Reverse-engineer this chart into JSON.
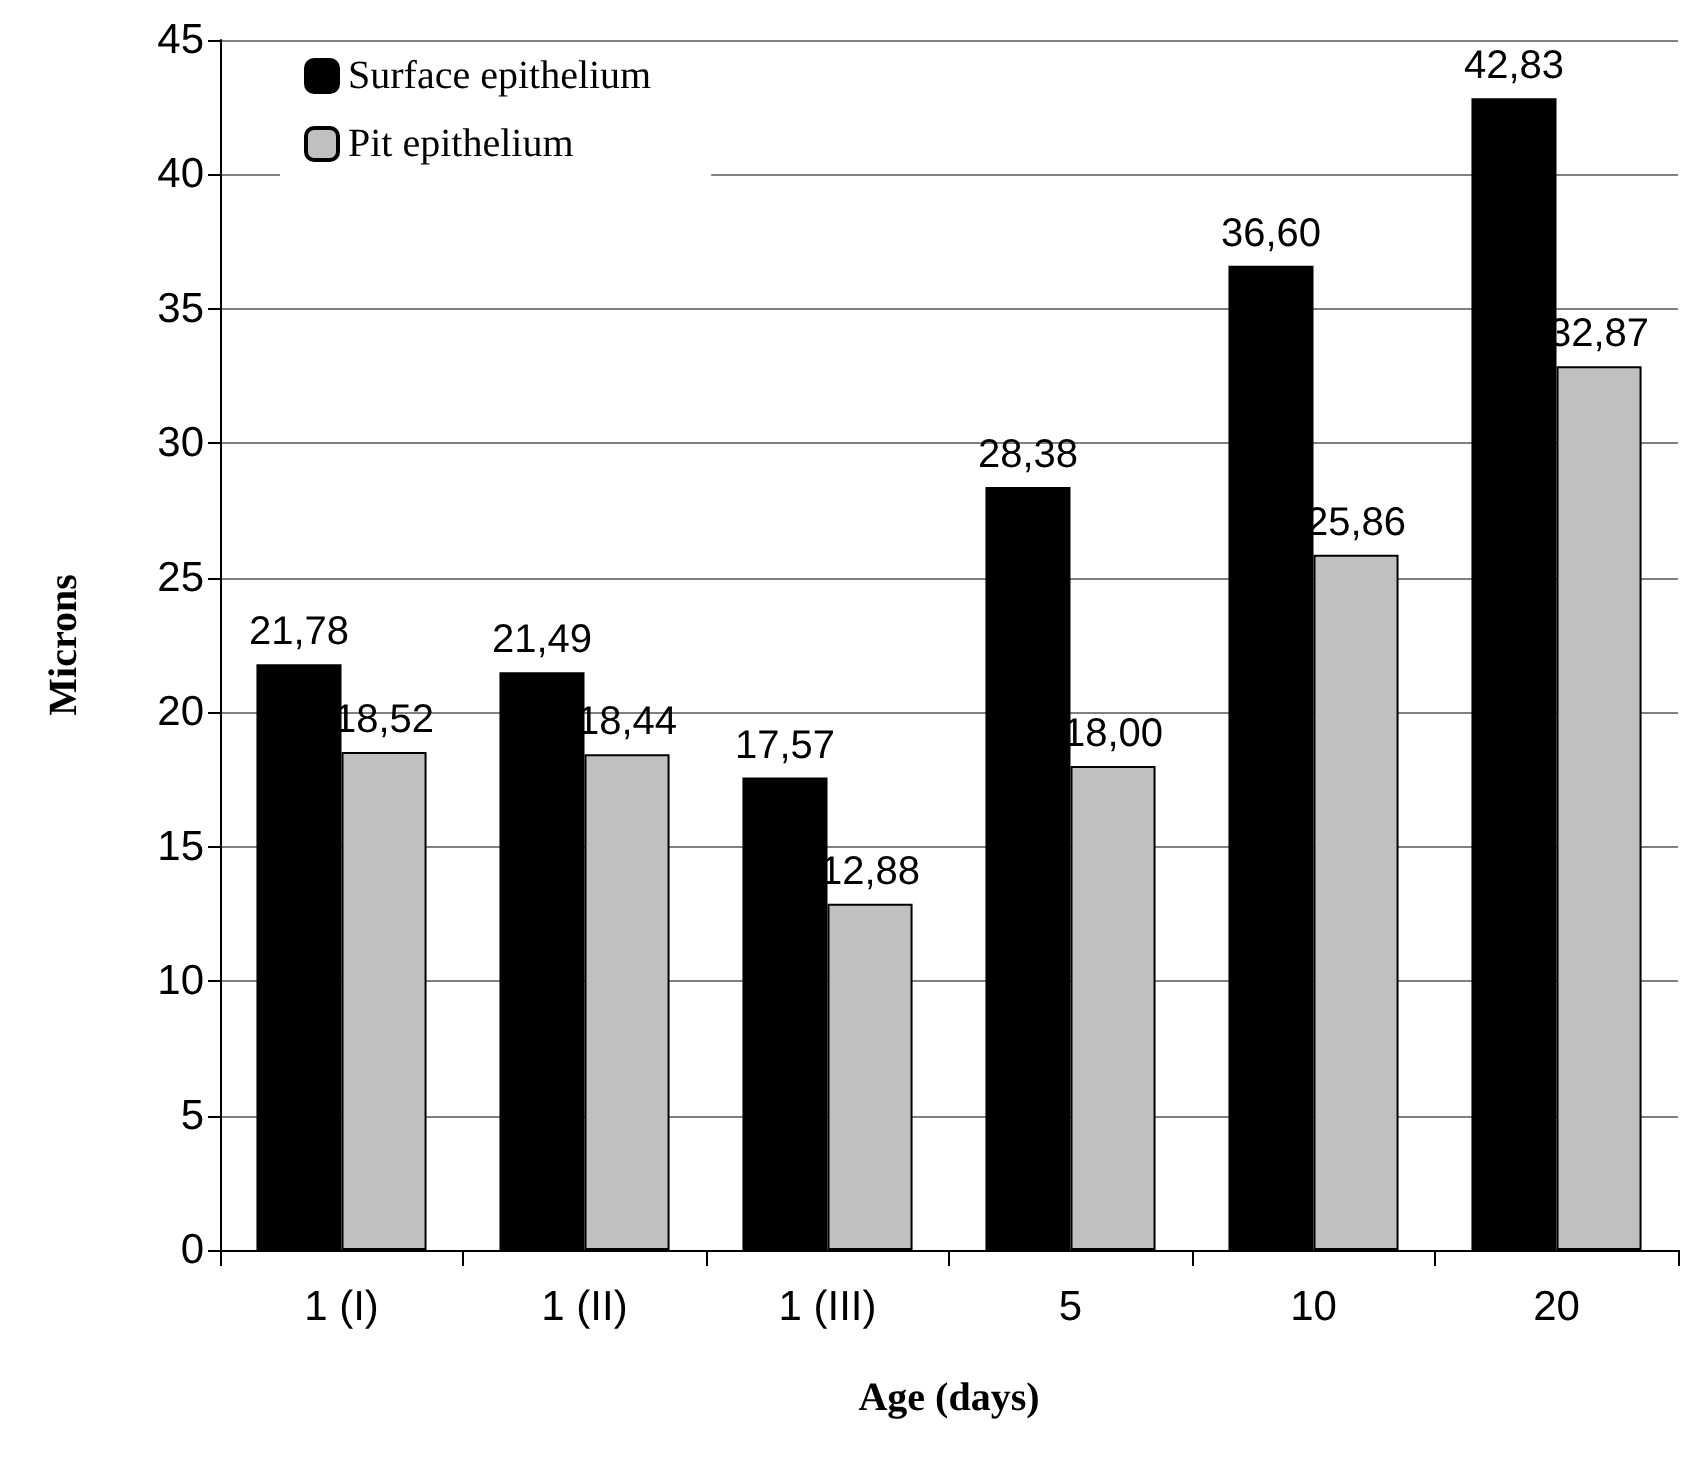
{
  "chart_data": {
    "type": "bar",
    "xlabel": "Age (days)",
    "ylabel": "Microns",
    "categories": [
      "1 (I)",
      "1 (II)",
      "1 (III)",
      "5",
      "10",
      "20"
    ],
    "series": [
      {
        "name": "Surface epithelium",
        "color": "#000000",
        "values": [
          21.78,
          21.49,
          17.57,
          28.38,
          36.6,
          42.83
        ],
        "value_labels": [
          "21,78",
          "21,49",
          "17,57",
          "28,38",
          "36,60",
          "42,83"
        ]
      },
      {
        "name": "Pit epithelium",
        "color": "#c0c0c0",
        "values": [
          18.52,
          18.44,
          12.88,
          18.0,
          25.86,
          32.87
        ],
        "value_labels": [
          "18,52",
          "18,44",
          "12,88",
          "18,00",
          "25,86",
          "32,87"
        ]
      }
    ],
    "ylim": [
      0,
      45
    ],
    "yticks": [
      0,
      5,
      10,
      15,
      20,
      25,
      30,
      35,
      40,
      45
    ],
    "grid": "y",
    "legend": "top left"
  }
}
